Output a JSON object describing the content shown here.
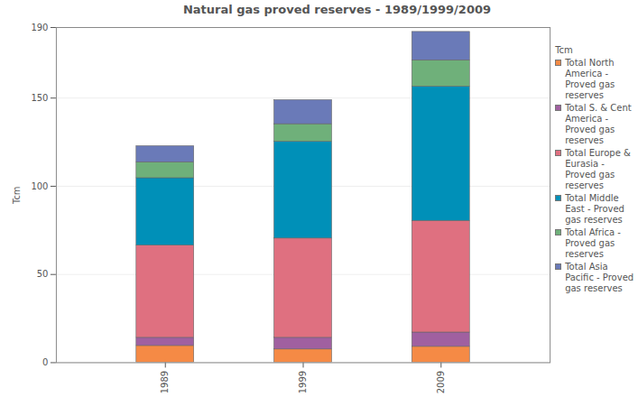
{
  "chart_data": {
    "type": "bar",
    "stacked": true,
    "title": "Natural gas proved reserves - 1989/1999/2009",
    "y_label": "Tcm",
    "legend_title": "Tcm",
    "legend": "right",
    "categories": [
      "1989",
      "1999",
      "2009"
    ],
    "series": [
      {
        "name": "Total North America - Proved gas reserves",
        "color": "#f58a45",
        "values": [
          9.5,
          7.5,
          9.0
        ]
      },
      {
        "name": "Total S. & Cent America - Proved gas reserves",
        "color": "#a060a0",
        "values": [
          4.6,
          6.6,
          8.1
        ]
      },
      {
        "name": "Total Europe & Eurasia - Proved gas reserves",
        "color": "#df7080",
        "values": [
          52.3,
          56.3,
          63.3
        ]
      },
      {
        "name": "Total Middle East - Proved gas reserves",
        "color": "#0090b8",
        "values": [
          38.2,
          54.8,
          76.0
        ]
      },
      {
        "name": "Total Africa - Proved gas reserves",
        "color": "#6fb07a",
        "values": [
          9.0,
          10.0,
          15.0
        ]
      },
      {
        "name": "Total Asia Pacific - Proved gas reserves",
        "color": "#6a7ab8",
        "values": [
          9.1,
          13.6,
          16.1
        ]
      }
    ],
    "ylim": [
      0,
      190
    ],
    "yticks": [
      0,
      50,
      100,
      150,
      190
    ],
    "grid": true
  }
}
